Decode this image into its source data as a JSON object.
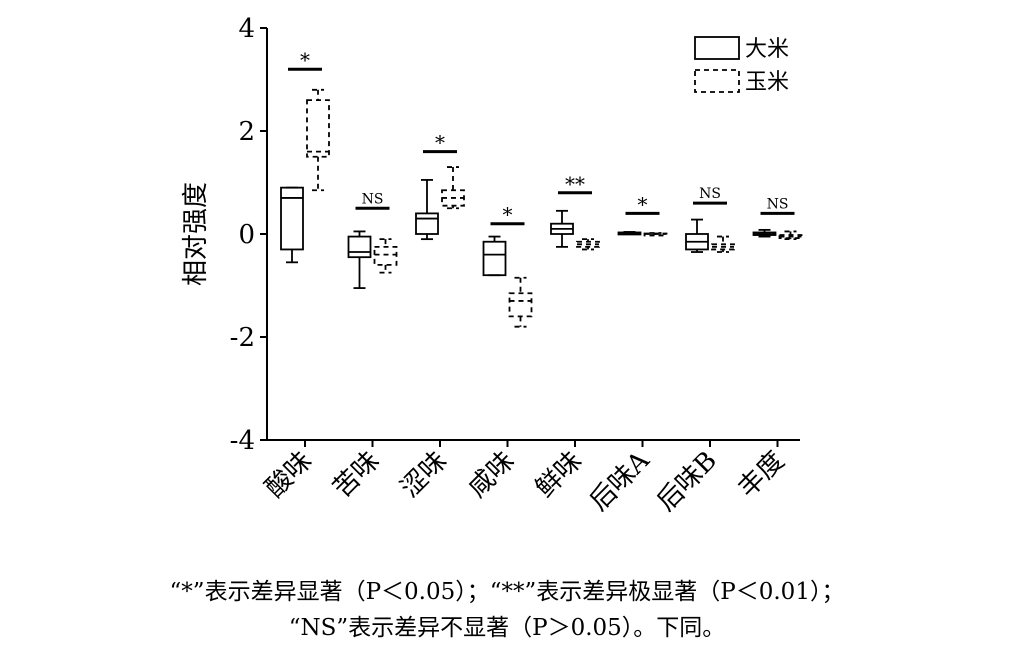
{
  "chart_data": {
    "type": "box",
    "ylabel": "相对强度",
    "ylim": [
      -4,
      4
    ],
    "yticks": [
      4,
      2,
      0,
      -2,
      -4
    ],
    "categories": [
      "酸味",
      "苦味",
      "涩味",
      "咸味",
      "鲜味",
      "后味A",
      "后味B",
      "丰度"
    ],
    "series": [
      {
        "name": "大米",
        "line_style": "solid",
        "boxes": [
          {
            "min": -0.55,
            "q1": -0.3,
            "median": 0.7,
            "q3": 0.9,
            "max": 0.9
          },
          {
            "min": -1.05,
            "q1": -0.45,
            "median": -0.35,
            "q3": -0.05,
            "max": 0.05
          },
          {
            "min": -0.1,
            "q1": 0.0,
            "median": 0.3,
            "q3": 0.4,
            "max": 1.05
          },
          {
            "min": -0.8,
            "q1": -0.8,
            "median": -0.4,
            "q3": -0.15,
            "max": -0.05
          },
          {
            "min": -0.25,
            "q1": 0.0,
            "median": 0.1,
            "q3": 0.2,
            "max": 0.45
          },
          {
            "min": 0.0,
            "q1": 0.01,
            "median": 0.02,
            "q3": 0.03,
            "max": 0.04
          },
          {
            "min": -0.35,
            "q1": -0.3,
            "median": -0.15,
            "q3": 0.0,
            "max": 0.28
          },
          {
            "min": -0.05,
            "q1": -0.02,
            "median": 0.0,
            "q3": 0.03,
            "max": 0.08
          }
        ]
      },
      {
        "name": "玉米",
        "line_style": "dashed",
        "boxes": [
          {
            "min": 0.85,
            "q1": 1.5,
            "median": 1.6,
            "q3": 2.6,
            "max": 2.8
          },
          {
            "min": -0.75,
            "q1": -0.6,
            "median": -0.4,
            "q3": -0.25,
            "max": -0.1
          },
          {
            "min": 0.5,
            "q1": 0.55,
            "median": 0.7,
            "q3": 0.85,
            "max": 1.3
          },
          {
            "min": -1.8,
            "q1": -1.6,
            "median": -1.3,
            "q3": -1.15,
            "max": -0.85
          },
          {
            "min": -0.3,
            "q1": -0.25,
            "median": -0.2,
            "q3": -0.15,
            "max": -0.1
          },
          {
            "min": -0.02,
            "q1": -0.01,
            "median": 0.0,
            "q3": 0.01,
            "max": 0.02
          },
          {
            "min": -0.35,
            "q1": -0.3,
            "median": -0.25,
            "q3": -0.2,
            "max": -0.05
          },
          {
            "min": -0.1,
            "q1": -0.08,
            "median": -0.05,
            "q3": -0.02,
            "max": 0.05
          }
        ]
      }
    ],
    "significance": [
      {
        "category": "酸味",
        "label": "*",
        "y": 3.2
      },
      {
        "category": "苦味",
        "label": "NS",
        "y": 0.5
      },
      {
        "category": "涩味",
        "label": "*",
        "y": 1.6
      },
      {
        "category": "咸味",
        "label": "*",
        "y": 0.2
      },
      {
        "category": "鲜味",
        "label": "**",
        "y": 0.8
      },
      {
        "category": "后味A",
        "label": "*",
        "y": 0.4
      },
      {
        "category": "后味B",
        "label": "NS",
        "y": 0.6
      },
      {
        "category": "丰度",
        "label": "NS",
        "y": 0.4
      }
    ],
    "legend": {
      "position": "top-right",
      "items": [
        "大米",
        "玉米"
      ]
    }
  },
  "caption": {
    "line1": "“*”表示差异显著（P＜0.05）；“**”表示差异极显著（P＜0.01）；",
    "line2": "“NS”表示差异不显著（P＞0.05）。下同。"
  }
}
